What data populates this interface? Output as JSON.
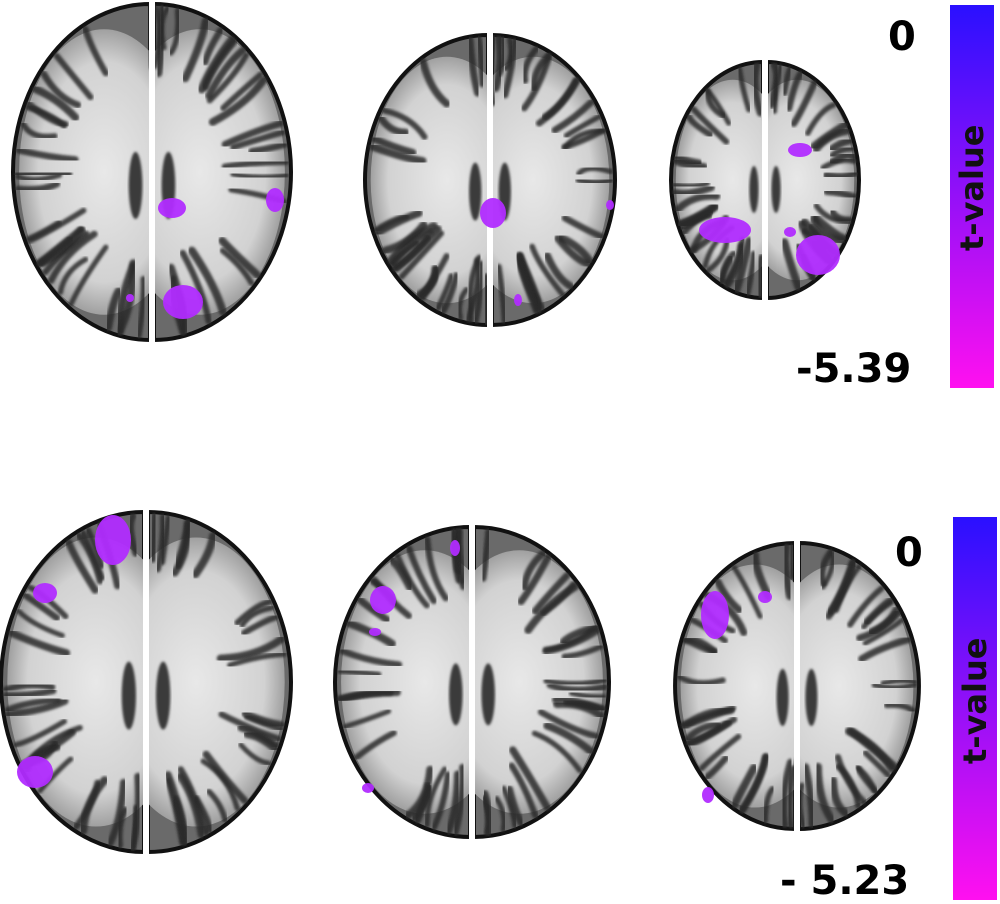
{
  "panels": [
    {
      "colorbar": {
        "title": "t-value",
        "max_label": "0",
        "min_label": "-5.39",
        "color_top": "#2a10ff",
        "color_bottom": "#ff10f0"
      }
    },
    {
      "colorbar": {
        "title": "t-value",
        "max_label": "0",
        "min_label": "- 5.23",
        "color_top": "#2a10ff",
        "color_bottom": "#ff10f0"
      }
    }
  ],
  "colors": {
    "activation": "#b12cff",
    "cortex_outline": "#111111",
    "white_matter": "#e4e4e4",
    "gray_matter": "#6a6a6a"
  }
}
